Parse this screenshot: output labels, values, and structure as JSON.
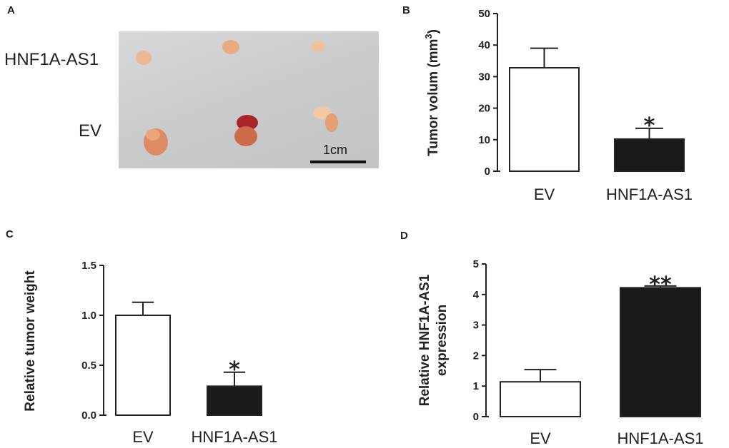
{
  "panels": {
    "a": {
      "letter": "A",
      "label_top": "HNF1A-AS1",
      "label_bottom": "EV",
      "scale_bar_label": "1cm"
    },
    "b": {
      "letter": "B"
    },
    "c": {
      "letter": "C"
    },
    "d": {
      "letter": "D"
    }
  },
  "colors": {
    "ev_bar": "#ffffff",
    "treated_bar": "#1a1a1a",
    "axis": "#222222",
    "tumor_light": "#e8b48a",
    "tumor_dark": "#b02828"
  },
  "chart_data": [
    {
      "id": "b",
      "type": "bar",
      "categories": [
        "EV",
        "HNF1A-AS1"
      ],
      "values": [
        32.8,
        10.2
      ],
      "errors": [
        6.2,
        3.4
      ],
      "significance": [
        "",
        "*"
      ],
      "ylabel": "Tumor volum (mm3)",
      "ylabel_main": "Tumor volum (mm",
      "ylabel_sup": "3",
      "ylabel_end": ")",
      "ylim": [
        0,
        50
      ],
      "yticks": [
        "0",
        "10",
        "20",
        "30",
        "40",
        "50"
      ],
      "xlabel": "",
      "title": ""
    },
    {
      "id": "c",
      "type": "bar",
      "categories": [
        "EV",
        "HNF1A-AS1"
      ],
      "values": [
        1.0,
        0.29
      ],
      "errors": [
        0.13,
        0.14
      ],
      "significance": [
        "",
        "*"
      ],
      "ylabel": "Relative tumor weight",
      "ylim": [
        0,
        1.5
      ],
      "yticks": [
        "0.0",
        "0.5",
        "1.0",
        "1.5"
      ],
      "xlabel": "",
      "title": ""
    },
    {
      "id": "d",
      "type": "bar",
      "categories": [
        "EV",
        "HNF1A-AS1"
      ],
      "values": [
        1.14,
        4.22
      ],
      "errors": [
        0.4,
        0.06
      ],
      "significance": [
        "",
        "**"
      ],
      "ylabel": "Relative HNF1A-AS1 expression",
      "ylabel_lines": [
        "Relative HNF1A-AS1",
        "expression"
      ],
      "ylim": [
        0,
        5
      ],
      "yticks": [
        "0",
        "1",
        "2",
        "3",
        "4",
        "5"
      ],
      "xlabel": "",
      "title": ""
    }
  ]
}
